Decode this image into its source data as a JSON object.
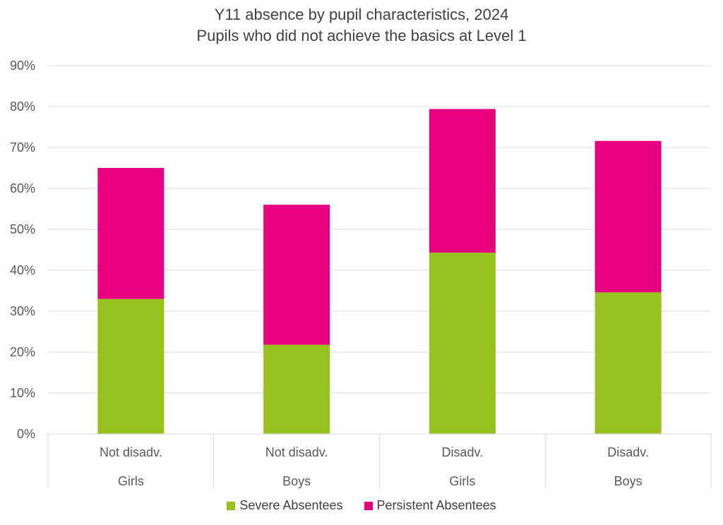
{
  "chart_data": {
    "type": "bar",
    "stacked": true,
    "title_line1": "Y11 absence by pupil characteristics, 2024",
    "title_line2": "Pupils who did not achieve the basics at Level 1",
    "categories": [
      {
        "group": "Not disadv.",
        "sub": "Girls"
      },
      {
        "group": "Not disadv.",
        "sub": "Boys"
      },
      {
        "group": "Disadv.",
        "sub": "Girls"
      },
      {
        "group": "Disadv.",
        "sub": "Boys"
      }
    ],
    "series": [
      {
        "name": "Severe Absentees",
        "color": "#97c11f",
        "values": [
          33,
          21.8,
          44.3,
          34.6
        ]
      },
      {
        "name": "Persistent Absentees",
        "color": "#e6007e",
        "values": [
          32,
          34.2,
          35.1,
          37.0
        ]
      }
    ],
    "ylim": [
      0,
      90
    ],
    "yticks": [
      0,
      10,
      20,
      30,
      40,
      50,
      60,
      70,
      80,
      90
    ],
    "ytick_labels": [
      "0%",
      "10%",
      "20%",
      "30%",
      "40%",
      "50%",
      "60%",
      "70%",
      "80%",
      "90%"
    ],
    "grid": true,
    "legend_position": "bottom"
  }
}
